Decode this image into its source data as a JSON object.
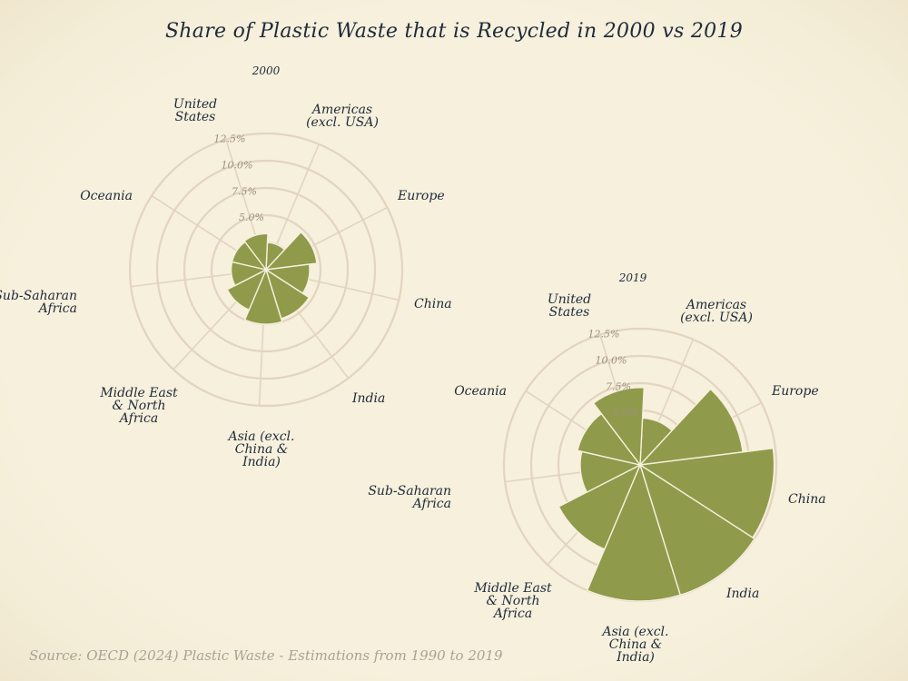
{
  "title": "Share of Plastic Waste that is Recycled in 2000 vs 2019",
  "source": "Source: OECD (2024) Plastic Waste - Estimations from 1990 to 2019",
  "colors": {
    "background": "#f6f0dc",
    "wedge": "#8f9a4b",
    "grid": "#e3d4c0",
    "text": "#1f2a3a",
    "source_text": "#a9a294"
  },
  "chart_data": [
    {
      "type": "polar-bar",
      "subtitle": "2000",
      "categories": [
        "United\nStates",
        "Americas\n(excl. USA)",
        "Europe",
        "China",
        "India",
        "Asia (excl.\nChina &\nIndia)",
        "Middle East\n& North\nAfrica",
        "Sub-Saharan\nAfrica",
        "Oceania"
      ],
      "values": [
        2.5,
        4.7,
        4.0,
        4.7,
        5.0,
        4.0,
        3.2,
        3.2,
        3.3
      ],
      "rlim": [
        0,
        12.5
      ],
      "tick_labels": [
        "5.0%",
        "7.5%",
        "10.0%",
        "12.5%"
      ],
      "grid": true
    },
    {
      "type": "polar-bar",
      "subtitle": "2019",
      "categories": [
        "United\nStates",
        "Americas\n(excl. USA)",
        "Europe",
        "China",
        "India",
        "Asia (excl.\nChina &\nIndia)",
        "Middle East\n& North\nAfrica",
        "Sub-Saharan\nAfrica",
        "Oceania"
      ],
      "values": [
        4.3,
        9.5,
        12.3,
        12.5,
        12.5,
        8.4,
        5.5,
        5.9,
        7.1
      ],
      "rlim": [
        0,
        12.5
      ],
      "tick_labels": [
        "5.0%",
        "7.5%",
        "10.0%",
        "12.5%"
      ],
      "grid": true
    }
  ]
}
